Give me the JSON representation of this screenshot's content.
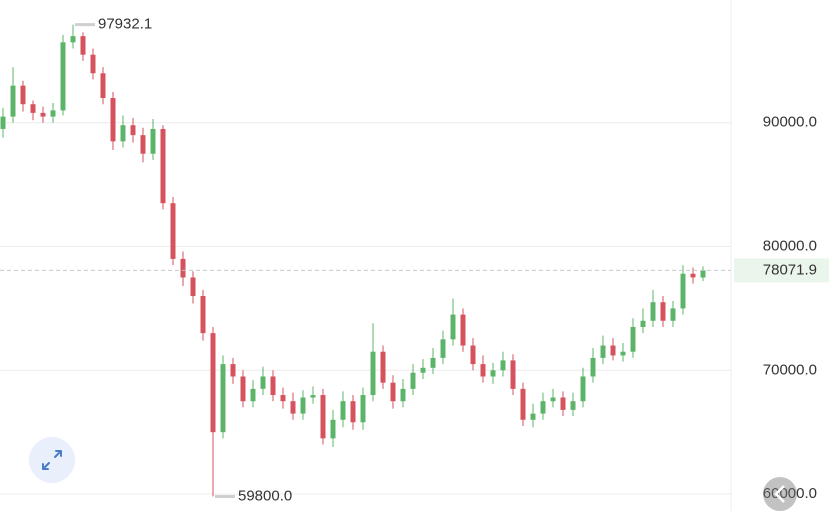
{
  "chart_data": {
    "type": "candlestick",
    "up_color": "#5cb46a",
    "down_color": "#d6535e",
    "ylim": [
      58630,
      99920
    ],
    "yticks": [
      {
        "value": 60000,
        "label": "60000.0"
      },
      {
        "value": 70000,
        "label": "70000.0"
      },
      {
        "value": 80000,
        "label": "80000.0"
      },
      {
        "value": 90000,
        "label": "90000.0"
      }
    ],
    "grid": true,
    "open": [
      89500,
      90500,
      93000,
      91500,
      90800,
      90500,
      91000,
      96500,
      97000,
      95500,
      94000,
      92000,
      88500,
      89800,
      89000,
      87500,
      89500,
      83500,
      79000,
      77500,
      76000,
      73000,
      65000,
      70500,
      69500,
      67500,
      68500,
      69500,
      68000,
      67500,
      66500,
      67800,
      68000,
      64500,
      66000,
      67500,
      65800,
      68000,
      71500,
      69000,
      67500,
      68500,
      69800,
      70200,
      71000,
      72500,
      74500,
      72000,
      70500,
      69500,
      70000,
      70800,
      68500,
      66000,
      66500,
      67500,
      67800,
      66800,
      67500,
      69500,
      71000,
      72000,
      71200,
      71500,
      73500,
      74000,
      75500,
      74000,
      75000,
      77800,
      77500
    ],
    "high": [
      91200,
      94500,
      93400,
      91800,
      91300,
      91600,
      97100,
      97932.1,
      97300,
      96000,
      94500,
      92500,
      90600,
      90400,
      89600,
      90300,
      89800,
      84000,
      79600,
      78000,
      76500,
      73500,
      71200,
      71000,
      70000,
      69200,
      70300,
      70000,
      68600,
      68200,
      68400,
      68700,
      68500,
      66800,
      68300,
      68000,
      68600,
      73800,
      72000,
      69600,
      69300,
      70500,
      70900,
      71800,
      73200,
      75800,
      75000,
      72600,
      71200,
      70600,
      71500,
      71300,
      69000,
      67300,
      68200,
      68500,
      68300,
      68200,
      70200,
      71800,
      72800,
      72600,
      72200,
      74200,
      75000,
      76500,
      76000,
      75600,
      78500,
      78300,
      78400
    ],
    "low": [
      88800,
      90000,
      90900,
      90200,
      90000,
      90000,
      90600,
      96000,
      95000,
      93500,
      91500,
      87800,
      88000,
      88400,
      86800,
      87000,
      83000,
      78500,
      76800,
      75400,
      72400,
      59800,
      64500,
      68900,
      67000,
      67000,
      68000,
      67500,
      66900,
      66000,
      66000,
      67300,
      64000,
      63800,
      65400,
      65200,
      65200,
      67500,
      68500,
      66900,
      67000,
      68000,
      69300,
      69700,
      70500,
      72000,
      71500,
      70000,
      69000,
      68900,
      69500,
      68000,
      65500,
      65400,
      66000,
      67000,
      66300,
      66300,
      67000,
      69000,
      70500,
      70800,
      70700,
      71000,
      73000,
      73500,
      73500,
      73500,
      74500,
      77000,
      77200
    ],
    "close": [
      90500,
      93000,
      91500,
      90800,
      90500,
      91000,
      96500,
      97000,
      95500,
      94000,
      92000,
      88500,
      89800,
      89000,
      87500,
      89500,
      83500,
      79000,
      77500,
      76000,
      73000,
      65000,
      70500,
      69500,
      67500,
      68500,
      69500,
      68000,
      67500,
      66500,
      67800,
      68000,
      64500,
      66000,
      67500,
      65800,
      68000,
      71500,
      69000,
      67500,
      68500,
      69800,
      70200,
      71000,
      72500,
      74500,
      72000,
      70500,
      69500,
      70000,
      70800,
      68500,
      66000,
      66500,
      67500,
      67800,
      66800,
      67500,
      69500,
      71000,
      72000,
      71200,
      71500,
      73500,
      74000,
      75500,
      74000,
      75000,
      77800,
      77500,
      78071.9
    ],
    "annotations": [
      {
        "text": "97932.1",
        "value": 97932.1
      },
      {
        "text": "59800.0",
        "value": 59800
      }
    ],
    "last_price": {
      "value": 78071.9,
      "label": "78071.9"
    }
  }
}
